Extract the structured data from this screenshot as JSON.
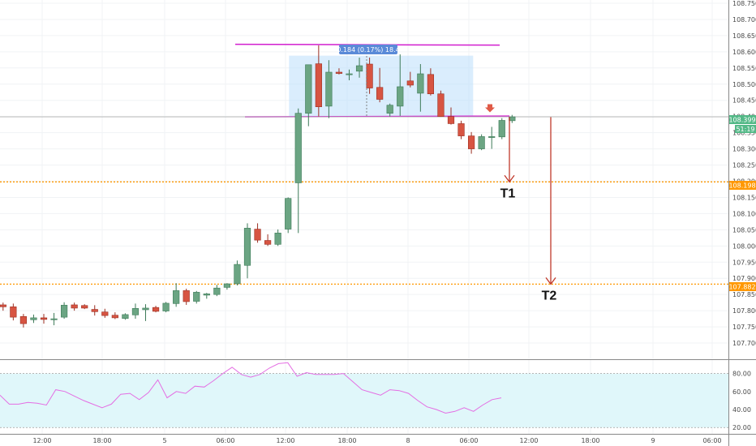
{
  "chart_data": [
    {
      "type": "candlestick",
      "title": "",
      "x_tick_labels": [
        "12:00",
        "18:00",
        "5",
        "06:00",
        "12:00",
        "18:00",
        "8",
        "06:00",
        "12:00",
        "18:00",
        "9",
        "06:00"
      ],
      "y_axis_range": [
        107.65,
        108.76
      ],
      "y_tick_labels": [
        "108.750",
        "108.700",
        "108.650",
        "108.600",
        "108.550",
        "108.500",
        "108.450",
        "108.400",
        "108.350",
        "108.300",
        "108.250",
        "108.200",
        "108.150",
        "108.100",
        "108.050",
        "108.000",
        "107.950",
        "107.900",
        "107.850",
        "107.800",
        "107.750",
        "107.700"
      ],
      "y_ticks": [
        108.75,
        108.7,
        108.65,
        108.6,
        108.55,
        108.5,
        108.45,
        108.4,
        108.35,
        108.3,
        108.25,
        108.2,
        108.15,
        108.1,
        108.05,
        108.0,
        107.95,
        107.9,
        107.85,
        107.8,
        107.75,
        107.7
      ],
      "grid": true,
      "candles": [
        {
          "o": 107.818,
          "h": 107.825,
          "l": 107.8,
          "c": 107.812
        },
        {
          "o": 107.812,
          "h": 107.822,
          "l": 107.77,
          "c": 107.78
        },
        {
          "o": 107.782,
          "h": 107.79,
          "l": 107.748,
          "c": 107.76
        },
        {
          "o": 107.772,
          "h": 107.788,
          "l": 107.762,
          "c": 107.778
        },
        {
          "o": 107.778,
          "h": 107.79,
          "l": 107.76,
          "c": 107.773
        },
        {
          "o": 107.774,
          "h": 107.793,
          "l": 107.755,
          "c": 107.775
        },
        {
          "o": 107.78,
          "h": 107.826,
          "l": 107.775,
          "c": 107.817
        },
        {
          "o": 107.818,
          "h": 107.825,
          "l": 107.8,
          "c": 107.808
        },
        {
          "o": 107.816,
          "h": 107.82,
          "l": 107.805,
          "c": 107.808
        },
        {
          "o": 107.804,
          "h": 107.817,
          "l": 107.785,
          "c": 107.797
        },
        {
          "o": 107.796,
          "h": 107.806,
          "l": 107.778,
          "c": 107.785
        },
        {
          "o": 107.786,
          "h": 107.795,
          "l": 107.774,
          "c": 107.778
        },
        {
          "o": 107.776,
          "h": 107.792,
          "l": 107.772,
          "c": 107.788
        },
        {
          "o": 107.787,
          "h": 107.822,
          "l": 107.775,
          "c": 107.807
        },
        {
          "o": 107.803,
          "h": 107.82,
          "l": 107.768,
          "c": 107.808
        },
        {
          "o": 107.81,
          "h": 107.815,
          "l": 107.795,
          "c": 107.798
        },
        {
          "o": 107.799,
          "h": 107.827,
          "l": 107.795,
          "c": 107.823
        },
        {
          "o": 107.822,
          "h": 107.885,
          "l": 107.812,
          "c": 107.862
        },
        {
          "o": 107.862,
          "h": 107.868,
          "l": 107.818,
          "c": 107.828
        },
        {
          "o": 107.829,
          "h": 107.861,
          "l": 107.822,
          "c": 107.857
        },
        {
          "o": 107.848,
          "h": 107.855,
          "l": 107.837,
          "c": 107.852
        },
        {
          "o": 107.85,
          "h": 107.88,
          "l": 107.845,
          "c": 107.87
        },
        {
          "o": 107.872,
          "h": 107.885,
          "l": 107.865,
          "c": 107.883
        },
        {
          "o": 107.883,
          "h": 107.955,
          "l": 107.878,
          "c": 107.943
        },
        {
          "o": 107.94,
          "h": 108.07,
          "l": 107.9,
          "c": 108.055
        },
        {
          "o": 108.052,
          "h": 108.07,
          "l": 108.01,
          "c": 108.018
        },
        {
          "o": 108.017,
          "h": 108.036,
          "l": 108.0,
          "c": 108.005
        },
        {
          "o": 108.005,
          "h": 108.051,
          "l": 108.0,
          "c": 108.04
        },
        {
          "o": 108.052,
          "h": 108.15,
          "l": 108.04,
          "c": 108.147
        },
        {
          "o": 108.195,
          "h": 108.425,
          "l": 108.04,
          "c": 108.41
        },
        {
          "o": 108.41,
          "h": 108.56,
          "l": 108.37,
          "c": 108.56
        },
        {
          "o": 108.563,
          "h": 108.62,
          "l": 108.4,
          "c": 108.43
        },
        {
          "o": 108.432,
          "h": 108.574,
          "l": 108.395,
          "c": 108.537
        },
        {
          "o": 108.537,
          "h": 108.549,
          "l": 108.53,
          "c": 108.533
        },
        {
          "o": 108.53,
          "h": 108.545,
          "l": 108.512,
          "c": 108.532
        },
        {
          "o": 108.54,
          "h": 108.582,
          "l": 108.52,
          "c": 108.557
        },
        {
          "o": 108.562,
          "h": 108.582,
          "l": 108.47,
          "c": 108.488
        },
        {
          "o": 108.49,
          "h": 108.55,
          "l": 108.444,
          "c": 108.453
        },
        {
          "o": 108.41,
          "h": 108.44,
          "l": 108.4,
          "c": 108.435
        },
        {
          "o": 108.432,
          "h": 108.592,
          "l": 108.402,
          "c": 108.492
        },
        {
          "o": 108.51,
          "h": 108.538,
          "l": 108.49,
          "c": 108.497
        },
        {
          "o": 108.472,
          "h": 108.562,
          "l": 108.415,
          "c": 108.532
        },
        {
          "o": 108.53,
          "h": 108.549,
          "l": 108.465,
          "c": 108.47
        },
        {
          "o": 108.47,
          "h": 108.48,
          "l": 108.399,
          "c": 108.4
        },
        {
          "o": 108.4,
          "h": 108.428,
          "l": 108.375,
          "c": 108.378
        },
        {
          "o": 108.378,
          "h": 108.387,
          "l": 108.33,
          "c": 108.34
        },
        {
          "o": 108.34,
          "h": 108.352,
          "l": 108.285,
          "c": 108.3
        },
        {
          "o": 108.3,
          "h": 108.345,
          "l": 108.296,
          "c": 108.338
        },
        {
          "o": 108.336,
          "h": 108.368,
          "l": 108.3,
          "c": 108.338
        },
        {
          "o": 108.337,
          "h": 108.395,
          "l": 108.33,
          "c": 108.388
        },
        {
          "o": 108.387,
          "h": 108.405,
          "l": 108.38,
          "c": 108.399
        }
      ],
      "price_label": "108.399",
      "countdown_label": "51:19",
      "level_labels": [
        "108.198",
        "107.882"
      ],
      "levels": [
        108.198,
        107.882
      ],
      "range_box": {
        "from_candle": 30,
        "to_candle": 50,
        "high": 108.588,
        "low": 108.4
      },
      "measure_label": "0.184 (0.17%) 18.4",
      "targets": [
        {
          "label": "T1",
          "from": 108.398,
          "to": 108.198,
          "candle": 51.3
        },
        {
          "label": "T2",
          "from": 108.398,
          "to": 107.882,
          "candle": 53.9
        }
      ],
      "colors": {
        "up": "#6ba583",
        "down": "#d75442",
        "resistance": "#d21ecf",
        "target_arrow": "#c0392b",
        "level": "#ff9800",
        "price_badge": "#53b987",
        "box": "#bbdefb"
      }
    },
    {
      "type": "line",
      "title": "",
      "y_axis_range": [
        13,
        95
      ],
      "y_tick_labels": [
        "80.00",
        "60.00",
        "40.00",
        "20.00"
      ],
      "y_ticks": [
        80,
        60,
        40,
        20
      ],
      "bands": [
        80,
        20
      ],
      "series": [
        {
          "values": [
            56,
            46,
            46,
            48,
            47,
            45,
            62,
            60,
            55,
            50,
            46,
            42,
            46,
            57,
            58,
            51,
            59,
            73,
            53,
            60,
            58,
            66,
            65,
            72,
            80,
            87,
            79,
            76,
            79,
            86,
            91,
            92,
            77,
            81,
            79,
            79,
            79,
            80,
            71,
            62,
            59,
            56,
            62,
            61,
            58,
            50,
            43,
            40,
            36,
            38,
            42,
            38,
            45,
            51,
            53
          ]
        }
      ],
      "colors": {
        "line": "#e46ee3",
        "band": "#e0f7fa"
      }
    }
  ]
}
